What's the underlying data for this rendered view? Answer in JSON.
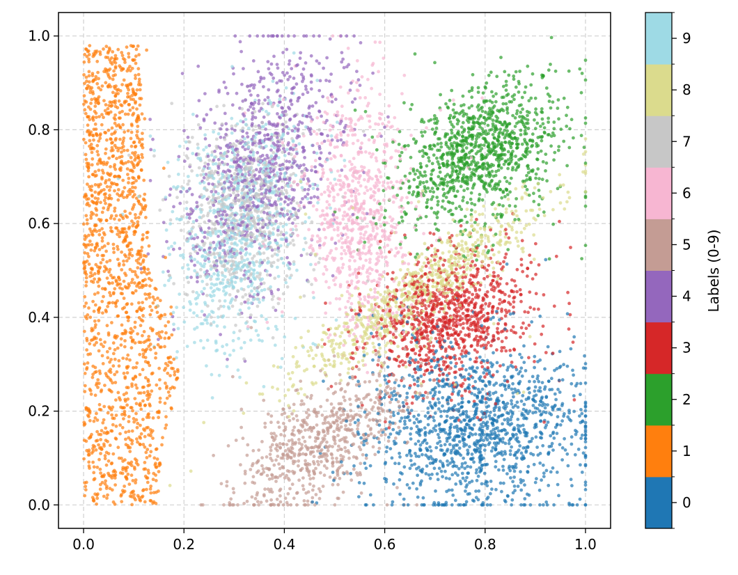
{
  "chart_data": {
    "type": "scatter",
    "title": "",
    "xlabel": "",
    "ylabel": "",
    "xlim": [
      -0.05,
      1.05
    ],
    "ylim": [
      -0.05,
      1.05
    ],
    "x_ticks": [
      "0.0",
      "0.2",
      "0.4",
      "0.6",
      "0.8",
      "1.0"
    ],
    "y_ticks": [
      "0.0",
      "0.2",
      "0.4",
      "0.6",
      "0.8",
      "1.0"
    ],
    "grid": true,
    "grid_style": "dashed",
    "point_alpha": 0.7,
    "colorbar": {
      "label": "Labels (0-9)",
      "ticks": [
        "0",
        "1",
        "2",
        "3",
        "4",
        "5",
        "6",
        "7",
        "8",
        "9"
      ],
      "colors": [
        "#1f77b4",
        "#ff7f0e",
        "#2ca02c",
        "#d62728",
        "#9467bd",
        "#c49c94",
        "#f7b6d2",
        "#c7c7c7",
        "#dbdb8d",
        "#9edae5"
      ]
    },
    "series": [
      {
        "label": "0",
        "color": "#1f77b4",
        "count": 1300,
        "shape": "ellipse",
        "center": [
          0.79,
          0.17
        ],
        "spread": [
          0.11,
          0.09
        ],
        "angle_deg": 0
      },
      {
        "label": "1",
        "color": "#ff7f0e",
        "count": 1500,
        "shape": "band",
        "x_start": 0.0,
        "x_width_bottom": 0.15,
        "x_width_top": 0.11,
        "x_offset_mid": 0.05,
        "y_range": [
          0.0,
          0.98
        ]
      },
      {
        "label": "2",
        "color": "#2ca02c",
        "count": 1100,
        "shape": "ellipse",
        "center": [
          0.79,
          0.75
        ],
        "spread": [
          0.09,
          0.06
        ],
        "angle_deg": 35
      },
      {
        "label": "3",
        "color": "#d62728",
        "count": 1000,
        "shape": "ellipse",
        "center": [
          0.73,
          0.4
        ],
        "spread": [
          0.08,
          0.07
        ],
        "angle_deg": 30
      },
      {
        "label": "4",
        "color": "#9467bd",
        "count": 900,
        "shape": "ellipse",
        "center": [
          0.36,
          0.72
        ],
        "spread": [
          0.07,
          0.14
        ],
        "angle_deg": -20
      },
      {
        "label": "5",
        "color": "#c49c94",
        "count": 700,
        "shape": "ellipse",
        "center": [
          0.48,
          0.14
        ],
        "spread": [
          0.1,
          0.05
        ],
        "angle_deg": 40
      },
      {
        "label": "6",
        "color": "#f7b6d2",
        "count": 800,
        "shape": "ellipse",
        "center": [
          0.55,
          0.62
        ],
        "spread": [
          0.05,
          0.13
        ],
        "angle_deg": 0
      },
      {
        "label": "7",
        "color": "#c7c7c7",
        "count": 700,
        "shape": "ellipse",
        "center": [
          0.32,
          0.62
        ],
        "spread": [
          0.06,
          0.1
        ],
        "angle_deg": 0
      },
      {
        "label": "8",
        "color": "#dbdb8d",
        "count": 800,
        "shape": "ellipse",
        "center": [
          0.66,
          0.45
        ],
        "spread": [
          0.16,
          0.03
        ],
        "angle_deg": 38
      },
      {
        "label": "9",
        "color": "#9edae5",
        "count": 800,
        "shape": "ellipse",
        "center": [
          0.31,
          0.58
        ],
        "spread": [
          0.06,
          0.13
        ],
        "angle_deg": -10
      }
    ]
  }
}
